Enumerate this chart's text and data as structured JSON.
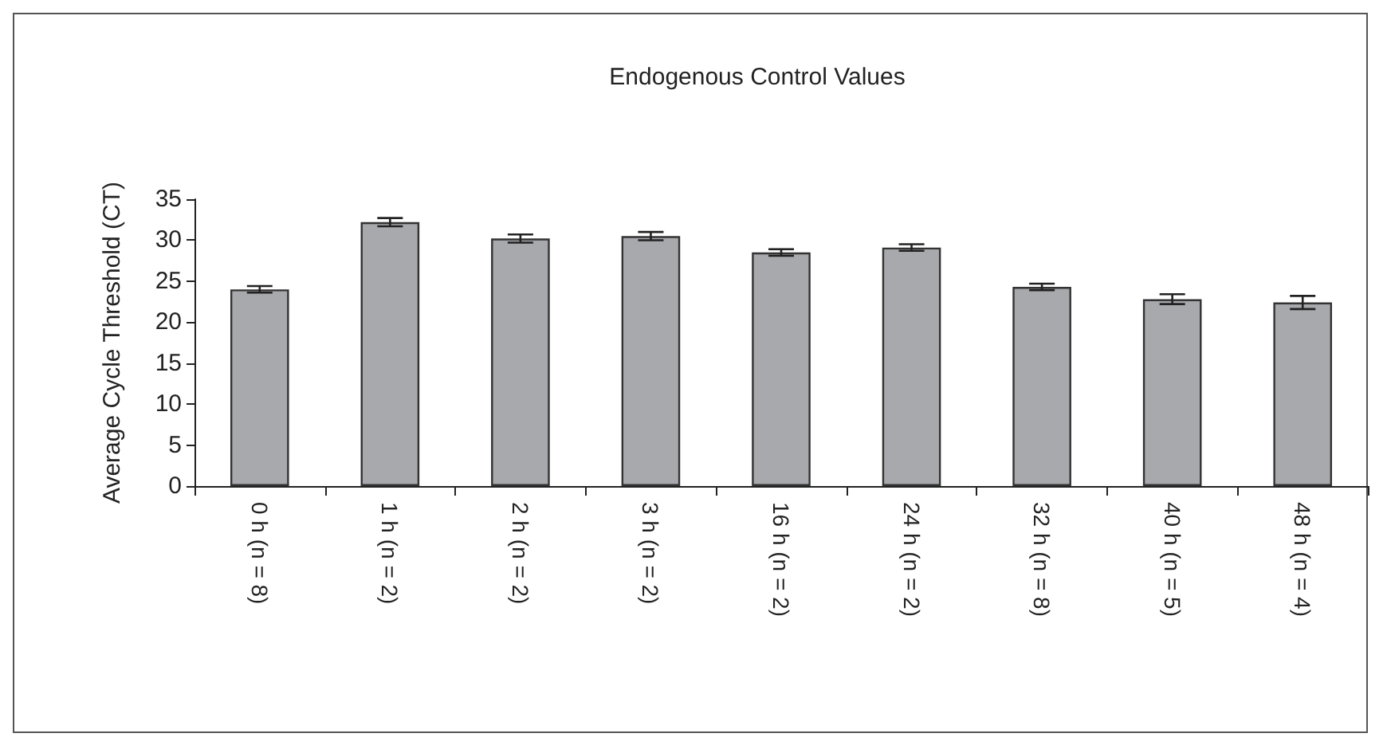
{
  "chart_data": {
    "type": "bar",
    "title": "Endogenous Control Values",
    "ylabel": "Average Cycle Threshold (CT)",
    "categories": [
      "0 h (n = 8)",
      "1 h (n = 2)",
      "2 h (n = 2)",
      "3 h (n = 2)",
      "16 h (n = 2)",
      "24 h (n = 2)",
      "32 h (n = 8)",
      "40 h (n = 5)",
      "48 h (n = 4)"
    ],
    "values": [
      24.0,
      32.2,
      30.2,
      30.5,
      28.5,
      29.1,
      24.3,
      22.8,
      22.4
    ],
    "errors": [
      0.4,
      0.5,
      0.5,
      0.5,
      0.4,
      0.4,
      0.4,
      0.6,
      0.8
    ],
    "color": "#a8a9ad",
    "ylim": [
      0,
      35
    ],
    "yticks": [
      0,
      5,
      10,
      15,
      20,
      25,
      30,
      35
    ],
    "grid": false
  }
}
